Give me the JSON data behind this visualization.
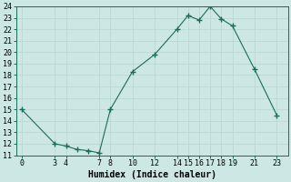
{
  "xlabel": "Humidex (Indice chaleur)",
  "x_values": [
    0,
    3,
    4,
    5,
    6,
    7,
    8,
    10,
    12,
    14,
    15,
    16,
    17,
    18,
    19,
    21,
    23
  ],
  "y_values": [
    15,
    12,
    11.8,
    11.5,
    11.4,
    11.2,
    15,
    18.3,
    19.8,
    22,
    23.2,
    22.8,
    24,
    22.9,
    22.3,
    18.5,
    14.5
  ],
  "line_color": "#1a6b5a",
  "marker": "+",
  "marker_size": 4,
  "bg_color": "#cde8e4",
  "grid_color": "#b8d5d0",
  "ylim": [
    11,
    24
  ],
  "xlim": [
    -0.5,
    24
  ],
  "yticks": [
    11,
    12,
    13,
    14,
    15,
    16,
    17,
    18,
    19,
    20,
    21,
    22,
    23,
    24
  ],
  "xticks": [
    0,
    3,
    4,
    7,
    8,
    10,
    12,
    14,
    15,
    16,
    17,
    18,
    19,
    21,
    23
  ],
  "tick_fontsize": 6,
  "xlabel_fontsize": 7
}
